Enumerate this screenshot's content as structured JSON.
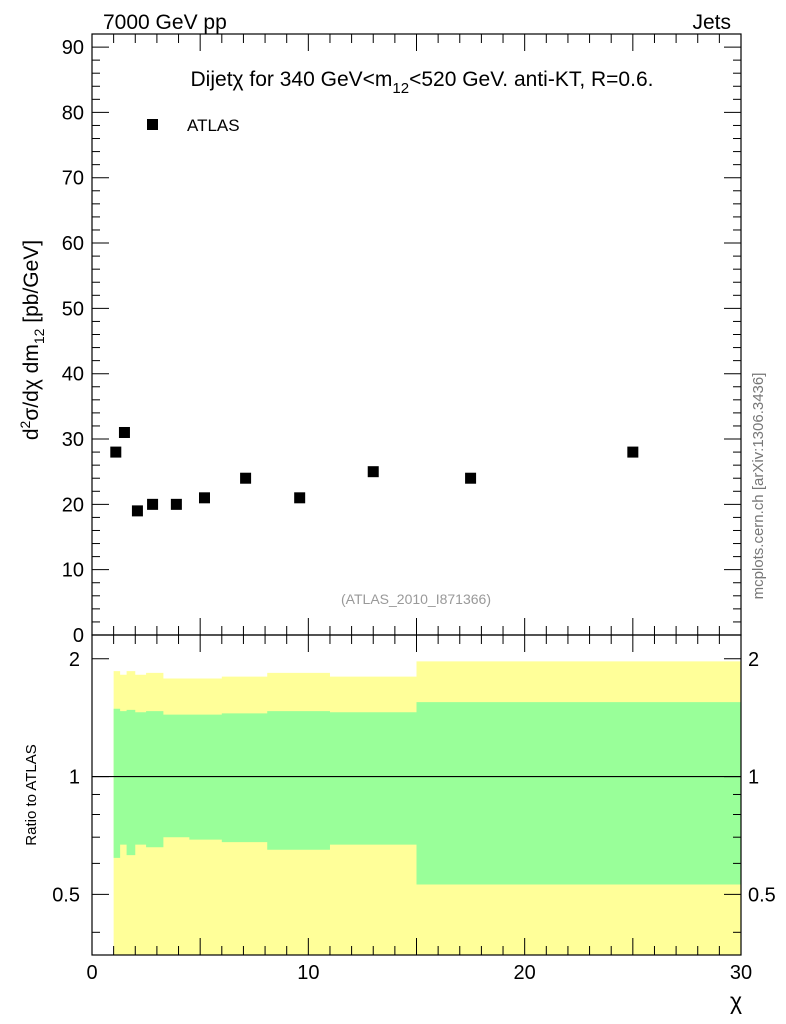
{
  "header": {
    "left": "7000 GeV pp",
    "right": "Jets"
  },
  "watermark": {
    "side": "mcplots.cern.ch [arXiv:1306.3436]",
    "analysis": "(ATLAS_2010_I871366)"
  },
  "chart_data": [
    {
      "type": "scatter",
      "title_parts": {
        "lead": "Dijet",
        "chi": "χ",
        "pre": " for 340 GeV<m",
        "sub": "12",
        "post": "<520 GeV.  anti-KT, R=0.6."
      },
      "ylabel_parts": {
        "a": "d",
        "sup": "2",
        "b": "σ/dχ dm",
        "sub": "12",
        "c": " [pb/GeV]"
      },
      "legend": [
        "ATLAS"
      ],
      "xlim": [
        0,
        30
      ],
      "ylim": [
        0,
        92
      ],
      "yticks": [
        0,
        10,
        20,
        30,
        40,
        50,
        60,
        70,
        80,
        90
      ],
      "yticklabels": [
        "0",
        "10",
        "20",
        "30",
        "40",
        "50",
        "60",
        "70",
        "80",
        "90"
      ],
      "series": [
        {
          "name": "ATLAS",
          "x": [
            1.1,
            1.5,
            2.1,
            2.8,
            3.9,
            5.2,
            7.1,
            9.6,
            13.0,
            17.5,
            25.0
          ],
          "y": [
            28,
            31,
            19,
            20,
            20,
            21,
            24,
            21,
            25,
            24,
            28
          ]
        }
      ]
    },
    {
      "type": "area",
      "ylabel": "Ratio to ATLAS",
      "xlabel": "χ",
      "xlim": [
        0,
        30
      ],
      "ylim": [
        0.35,
        2.3
      ],
      "yscale": "log",
      "xticks": [
        0,
        10,
        20,
        30
      ],
      "xticklabels": [
        "0",
        "10",
        "20",
        "30"
      ],
      "yticks": [
        0.5,
        1,
        2
      ],
      "yticklabels": [
        "0.5",
        "1",
        "2"
      ],
      "reference_line": 1,
      "bins": [
        1.0,
        1.3,
        1.6,
        2.0,
        2.5,
        3.3,
        4.5,
        6.0,
        8.1,
        11.0,
        15.0,
        20.0,
        30.0
      ],
      "bands": [
        {
          "name": "outer",
          "color": "#ffff99",
          "lower": [
            0.35,
            0.35,
            0.35,
            0.35,
            0.35,
            0.35,
            0.35,
            0.35,
            0.35,
            0.35,
            0.35,
            0.35
          ],
          "upper": [
            1.86,
            1.82,
            1.86,
            1.82,
            1.84,
            1.78,
            1.78,
            1.8,
            1.84,
            1.8,
            1.97,
            1.97
          ]
        },
        {
          "name": "inner",
          "color": "#99ff99",
          "lower": [
            0.62,
            0.67,
            0.63,
            0.67,
            0.66,
            0.7,
            0.69,
            0.68,
            0.65,
            0.67,
            0.53,
            0.53
          ],
          "upper": [
            1.49,
            1.47,
            1.48,
            1.46,
            1.47,
            1.44,
            1.44,
            1.45,
            1.47,
            1.46,
            1.55,
            1.55
          ]
        }
      ]
    }
  ]
}
